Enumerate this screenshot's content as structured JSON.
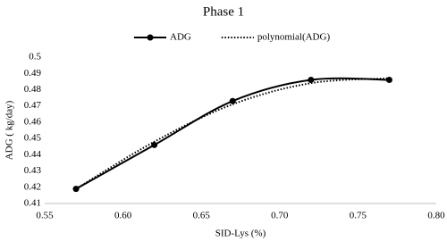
{
  "chart_data": {
    "type": "line",
    "title": "Phase 1",
    "x_label": "SID-Lys (%)",
    "y_label": "ADG ( kg/day)",
    "x": [
      0.57,
      0.62,
      0.67,
      0.72,
      0.77
    ],
    "series": [
      {
        "name": "ADG",
        "color": "#000000",
        "line_style": "solid",
        "markers": true,
        "values": [
          0.419,
          0.446,
          0.473,
          0.486,
          0.486
        ]
      },
      {
        "name": "polynomial(ADG)",
        "color": "#000000",
        "line_style": "dotted",
        "markers": false,
        "values": [
          0.419,
          0.448,
          0.471,
          0.484,
          0.487
        ]
      }
    ],
    "xlim": [
      0.55,
      0.8
    ],
    "xticks": [
      0.55,
      {
        "value": 0.6,
        "label": "0.60"
      },
      0.65,
      {
        "value": 0.7,
        "label": "0.70"
      },
      0.75,
      {
        "value": 0.8,
        "label": "0.80"
      }
    ],
    "ylim": [
      0.41,
      0.5
    ],
    "yticks": [
      0.41,
      0.42,
      0.43,
      0.44,
      0.45,
      0.46,
      0.47,
      0.48,
      0.49,
      0.5
    ],
    "grid": false,
    "legend": "top"
  }
}
